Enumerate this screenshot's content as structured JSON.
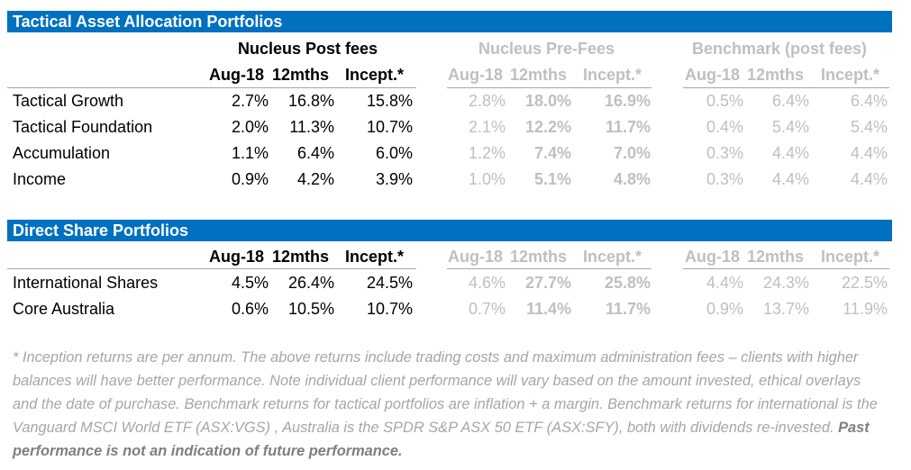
{
  "tactical": {
    "title": "Tactical Asset Allocation Portfolios",
    "groups": [
      "Nucleus Post fees",
      "Nucleus Pre-Fees",
      "Benchmark (post fees)"
    ],
    "headers": [
      "Aug-18",
      "12mths",
      "Incept.*"
    ],
    "rows": [
      {
        "label": "Tactical Growth",
        "post": [
          "2.7%",
          "16.8%",
          "15.8%"
        ],
        "pre": [
          "2.8%",
          "18.0%",
          "16.9%"
        ],
        "bench": [
          "0.5%",
          "6.4%",
          "6.4%"
        ]
      },
      {
        "label": "Tactical Foundation",
        "post": [
          "2.0%",
          "11.3%",
          "10.7%"
        ],
        "pre": [
          "2.1%",
          "12.2%",
          "11.7%"
        ],
        "bench": [
          "0.4%",
          "5.4%",
          "5.4%"
        ]
      },
      {
        "label": "Accumulation",
        "post": [
          "1.1%",
          "6.4%",
          "6.0%"
        ],
        "pre": [
          "1.2%",
          "7.4%",
          "7.0%"
        ],
        "bench": [
          "0.3%",
          "4.4%",
          "4.4%"
        ]
      },
      {
        "label": "Income",
        "post": [
          "0.9%",
          "4.2%",
          "3.9%"
        ],
        "pre": [
          "1.0%",
          "5.1%",
          "4.8%"
        ],
        "bench": [
          "0.3%",
          "4.4%",
          "4.4%"
        ]
      }
    ]
  },
  "direct": {
    "title": "Direct Share Portfolios",
    "headers": [
      "Aug-18",
      "12mths",
      "Incept.*"
    ],
    "rows": [
      {
        "label": "International Shares",
        "post": [
          "4.5%",
          "26.4%",
          "24.5%"
        ],
        "pre": [
          "4.6%",
          "27.7%",
          "25.8%"
        ],
        "bench": [
          "4.4%",
          "24.3%",
          "22.5%"
        ]
      },
      {
        "label": "Core Australia",
        "post": [
          "0.6%",
          "10.5%",
          "10.7%"
        ],
        "pre": [
          "0.7%",
          "11.4%",
          "11.7%"
        ],
        "bench": [
          "0.9%",
          "13.7%",
          "11.9%"
        ]
      }
    ]
  },
  "footnote": {
    "text": "* Inception returns are per annum. The above returns include trading costs and maximum administration fees  – clients with higher balances will have better performance. Note individual client performance will vary based on the amount invested, ethical overlays and the date of purchase. Benchmark returns for tactical portfolios are inflation + a margin. Benchmark returns for international is the Vanguard MSCI World ETF (ASX:VGS) , Australia is the SPDR S&P ASX 50 ETF (ASX:SFY), both with dividends re-invested. ",
    "emphasis": "Past performance is not an indication of future performance."
  },
  "colors": {
    "banner": "#0070c0",
    "muted": "#bfbfbf",
    "rule": "#a6a6a6"
  }
}
